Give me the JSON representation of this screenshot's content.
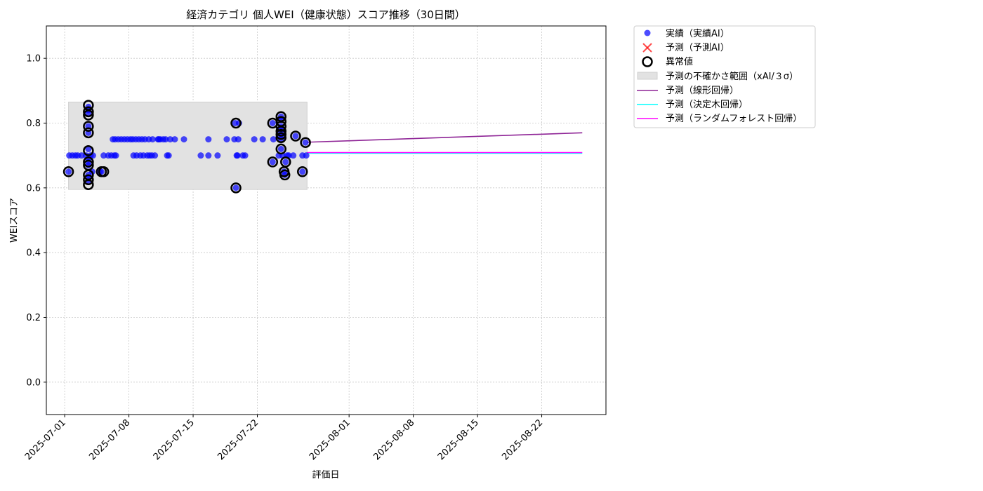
{
  "chart_data": {
    "type": "scatter",
    "title": "経済カテゴリ 個人WEI（健康状態）スコア推移（30日間）",
    "xlabel": "評価日",
    "ylabel": "WEIスコア",
    "xlim": [
      "2025-06-29",
      "2025-08-29"
    ],
    "ylim": [
      -0.1,
      1.1
    ],
    "xticks": [
      "2025-07-01",
      "2025-07-08",
      "2025-07-15",
      "2025-07-22",
      "2025-08-01",
      "2025-08-08",
      "2025-08-15",
      "2025-08-22"
    ],
    "yticks": [
      0.0,
      0.2,
      0.4,
      0.6,
      0.8,
      1.0
    ],
    "ytick_labels": [
      "0.0",
      "0.2",
      "0.4",
      "0.6",
      "0.8",
      "1.0"
    ],
    "grid": true,
    "legend_position": "outside-top-right",
    "legend": {
      "actual": "実績（実績AI）",
      "forecast": "予測（予測AI）",
      "anomaly": "異常値",
      "band": "予測の不確かさ範囲（xAI/３σ）",
      "linear": "予測（線形回帰）",
      "tree": "予測（決定木回帰）",
      "forest": "予測（ランダムフォレスト回帰）"
    },
    "colors": {
      "actual": "#0000ff",
      "forecast": "#ff0000",
      "anomaly": "#000000",
      "band": "#e2e2e2",
      "linear": "#8e2496",
      "tree": "#00ffff",
      "forest": "#ff00ff",
      "grid": "#c8c8c8"
    },
    "uncertainty_band": {
      "x": [
        "2025-07-01T10:00",
        "2025-07-27T10:00"
      ],
      "y": [
        0.595,
        0.865
      ]
    },
    "series": [
      {
        "key": "actual",
        "points": [
          [
            "2025-07-01T10:00",
            0.65
          ],
          [
            "2025-07-01T12:00",
            0.7
          ],
          [
            "2025-07-01T20:00",
            0.7
          ],
          [
            "2025-07-02T04:00",
            0.7
          ],
          [
            "2025-07-02T10:00",
            0.7
          ],
          [
            "2025-07-02T20:00",
            0.7
          ],
          [
            "2025-07-03T08:00",
            0.7
          ],
          [
            "2025-07-03T14:00",
            0.85
          ],
          [
            "2025-07-03T14:00",
            0.84
          ],
          [
            "2025-07-03T14:00",
            0.83
          ],
          [
            "2025-07-03T14:00",
            0.79
          ],
          [
            "2025-07-03T14:00",
            0.77
          ],
          [
            "2025-07-03T14:00",
            0.72
          ],
          [
            "2025-07-03T14:00",
            0.69
          ],
          [
            "2025-07-03T14:00",
            0.68
          ],
          [
            "2025-07-03T14:00",
            0.67
          ],
          [
            "2025-07-03T14:00",
            0.64
          ],
          [
            "2025-07-03T14:00",
            0.63
          ],
          [
            "2025-07-03T14:00",
            0.62
          ],
          [
            "2025-07-03T20:00",
            0.7
          ],
          [
            "2025-07-04T00:00",
            0.65
          ],
          [
            "2025-07-04T02:00",
            0.7
          ],
          [
            "2025-07-04T20:00",
            0.65
          ],
          [
            "2025-07-05T00:00",
            0.65
          ],
          [
            "2025-07-05T06:00",
            0.7
          ],
          [
            "2025-07-05T18:00",
            0.7
          ],
          [
            "2025-07-06T02:00",
            0.7
          ],
          [
            "2025-07-06T06:00",
            0.75
          ],
          [
            "2025-07-06T10:00",
            0.7
          ],
          [
            "2025-07-06T12:00",
            0.75
          ],
          [
            "2025-07-06T14:00",
            0.7
          ],
          [
            "2025-07-06T20:00",
            0.75
          ],
          [
            "2025-07-07T04:00",
            0.75
          ],
          [
            "2025-07-07T12:00",
            0.75
          ],
          [
            "2025-07-07T20:00",
            0.75
          ],
          [
            "2025-07-08T04:00",
            0.75
          ],
          [
            "2025-07-08T10:00",
            0.75
          ],
          [
            "2025-07-08T12:00",
            0.7
          ],
          [
            "2025-07-08T18:00",
            0.75
          ],
          [
            "2025-07-08T20:00",
            0.7
          ],
          [
            "2025-07-09T02:00",
            0.75
          ],
          [
            "2025-07-09T06:00",
            0.7
          ],
          [
            "2025-07-09T10:00",
            0.75
          ],
          [
            "2025-07-09T14:00",
            0.7
          ],
          [
            "2025-07-09T18:00",
            0.75
          ],
          [
            "2025-07-10T00:00",
            0.7
          ],
          [
            "2025-07-10T04:00",
            0.75
          ],
          [
            "2025-07-10T06:00",
            0.7
          ],
          [
            "2025-07-10T12:00",
            0.7
          ],
          [
            "2025-07-10T14:00",
            0.75
          ],
          [
            "2025-07-10T20:00",
            0.7
          ],
          [
            "2025-07-11T04:00",
            0.75
          ],
          [
            "2025-07-11T06:00",
            0.75
          ],
          [
            "2025-07-11T10:00",
            0.75
          ],
          [
            "2025-07-11T18:00",
            0.75
          ],
          [
            "2025-07-12T00:00",
            0.75
          ],
          [
            "2025-07-12T04:00",
            0.7
          ],
          [
            "2025-07-12T08:00",
            0.7
          ],
          [
            "2025-07-12T12:00",
            0.75
          ],
          [
            "2025-07-13T00:00",
            0.75
          ],
          [
            "2025-07-14T00:00",
            0.75
          ],
          [
            "2025-07-15T20:00",
            0.7
          ],
          [
            "2025-07-16T16:00",
            0.75
          ],
          [
            "2025-07-16T16:00",
            0.7
          ],
          [
            "2025-07-17T16:00",
            0.7
          ],
          [
            "2025-07-18T16:00",
            0.75
          ],
          [
            "2025-07-19T12:00",
            0.75
          ],
          [
            "2025-07-19T14:00",
            0.8
          ],
          [
            "2025-07-19T16:00",
            0.6
          ],
          [
            "2025-07-19T18:00",
            0.7
          ],
          [
            "2025-07-19T20:00",
            0.7
          ],
          [
            "2025-07-19T22:00",
            0.75
          ],
          [
            "2025-07-20T00:00",
            0.8
          ],
          [
            "2025-07-20T10:00",
            0.7
          ],
          [
            "2025-07-20T16:00",
            0.7
          ],
          [
            "2025-07-21T16:00",
            0.75
          ],
          [
            "2025-07-22T14:00",
            0.75
          ],
          [
            "2025-07-23T16:00",
            0.8
          ],
          [
            "2025-07-23T16:00",
            0.68
          ],
          [
            "2025-07-23T18:00",
            0.75
          ],
          [
            "2025-07-24T08:00",
            0.7
          ],
          [
            "2025-07-24T14:00",
            0.82
          ],
          [
            "2025-07-24T14:00",
            0.81
          ],
          [
            "2025-07-24T14:00",
            0.79
          ],
          [
            "2025-07-24T14:00",
            0.78
          ],
          [
            "2025-07-24T14:00",
            0.77
          ],
          [
            "2025-07-24T14:00",
            0.76
          ],
          [
            "2025-07-24T14:00",
            0.75
          ],
          [
            "2025-07-24T14:00",
            0.72
          ],
          [
            "2025-07-24T18:00",
            0.7
          ],
          [
            "2025-07-24T22:00",
            0.65
          ],
          [
            "2025-07-25T00:00",
            0.64
          ],
          [
            "2025-07-25T02:00",
            0.68
          ],
          [
            "2025-07-25T06:00",
            0.7
          ],
          [
            "2025-07-25T10:00",
            0.7
          ],
          [
            "2025-07-25T22:00",
            0.7
          ],
          [
            "2025-07-26T04:00",
            0.76
          ],
          [
            "2025-07-26T22:00",
            0.65
          ],
          [
            "2025-07-26T22:00",
            0.7
          ],
          [
            "2025-07-27T06:00",
            0.74
          ],
          [
            "2025-07-27T08:00",
            0.7
          ]
        ]
      },
      {
        "key": "anomaly",
        "points": [
          [
            "2025-07-01T10:00",
            0.65
          ],
          [
            "2025-07-03T14:00",
            0.855
          ],
          [
            "2025-07-03T14:00",
            0.835
          ],
          [
            "2025-07-03T14:00",
            0.825
          ],
          [
            "2025-07-03T14:00",
            0.79
          ],
          [
            "2025-07-03T14:00",
            0.77
          ],
          [
            "2025-07-03T14:00",
            0.715
          ],
          [
            "2025-07-03T14:00",
            0.68
          ],
          [
            "2025-07-03T14:00",
            0.67
          ],
          [
            "2025-07-03T14:00",
            0.64
          ],
          [
            "2025-07-03T14:00",
            0.625
          ],
          [
            "2025-07-03T14:00",
            0.61
          ],
          [
            "2025-07-05T00:00",
            0.65
          ],
          [
            "2025-07-05T06:00",
            0.65
          ],
          [
            "2025-07-19T16:00",
            0.8
          ],
          [
            "2025-07-19T16:00",
            0.6
          ],
          [
            "2025-07-23T16:00",
            0.8
          ],
          [
            "2025-07-23T16:00",
            0.68
          ],
          [
            "2025-07-24T14:00",
            0.82
          ],
          [
            "2025-07-24T14:00",
            0.805
          ],
          [
            "2025-07-24T14:00",
            0.79
          ],
          [
            "2025-07-24T14:00",
            0.775
          ],
          [
            "2025-07-24T14:00",
            0.765
          ],
          [
            "2025-07-24T14:00",
            0.755
          ],
          [
            "2025-07-24T14:00",
            0.72
          ],
          [
            "2025-07-24T22:00",
            0.65
          ],
          [
            "2025-07-25T00:00",
            0.64
          ],
          [
            "2025-07-25T02:00",
            0.68
          ],
          [
            "2025-07-26T04:00",
            0.76
          ],
          [
            "2025-07-26T22:00",
            0.65
          ],
          [
            "2025-07-27T06:00",
            0.74
          ]
        ]
      },
      {
        "key": "linear",
        "points": [
          [
            "2025-07-27T10:00",
            0.741
          ],
          [
            "2025-08-26T10:00",
            0.77
          ]
        ]
      },
      {
        "key": "tree",
        "points": [
          [
            "2025-07-27T10:00",
            0.707
          ],
          [
            "2025-08-26T10:00",
            0.707
          ]
        ]
      },
      {
        "key": "forest",
        "points": [
          [
            "2025-07-27T10:00",
            0.709
          ],
          [
            "2025-08-26T10:00",
            0.709
          ]
        ]
      }
    ]
  }
}
